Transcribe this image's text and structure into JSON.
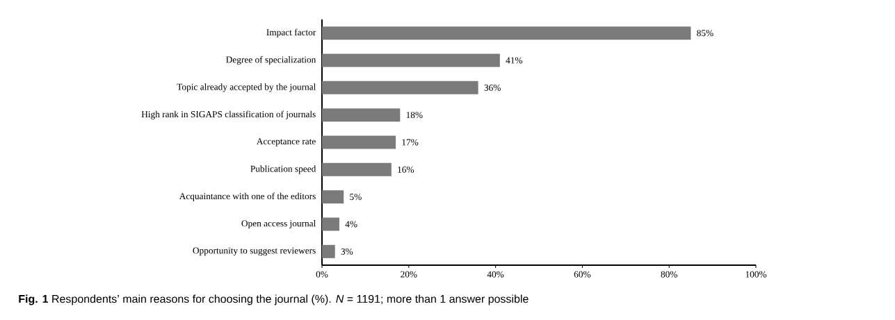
{
  "chart_data": {
    "type": "bar",
    "orientation": "horizontal",
    "categories": [
      "Impact factor",
      "Degree of specialization",
      "Topic already accepted by the journal",
      "High rank in SIGAPS classification of journals",
      "Acceptance rate",
      "Publication speed",
      "Acquaintance with one of the editors",
      "Open access journal",
      "Opportunity to suggest reviewers"
    ],
    "values": [
      85,
      41,
      36,
      18,
      17,
      16,
      5,
      4,
      3
    ],
    "value_labels": [
      "85%",
      "41%",
      "36%",
      "18%",
      "17%",
      "16%",
      "5%",
      "4%",
      "3%"
    ],
    "color": "#7a7a7a",
    "xlim": [
      0,
      100
    ],
    "xticks": [
      {
        "value": 0,
        "label": "0%"
      },
      {
        "value": 20,
        "label": "20%"
      },
      {
        "value": 40,
        "label": "40%"
      },
      {
        "value": 60,
        "label": "60%"
      },
      {
        "value": 80,
        "label": "80%"
      },
      {
        "value": 100,
        "label": "100%"
      }
    ],
    "annotations": [
      "**Fig. 1** Respondents’ main reasons for choosing the journal (%). *N* = 1191; more than 1 answer possible"
    ]
  }
}
